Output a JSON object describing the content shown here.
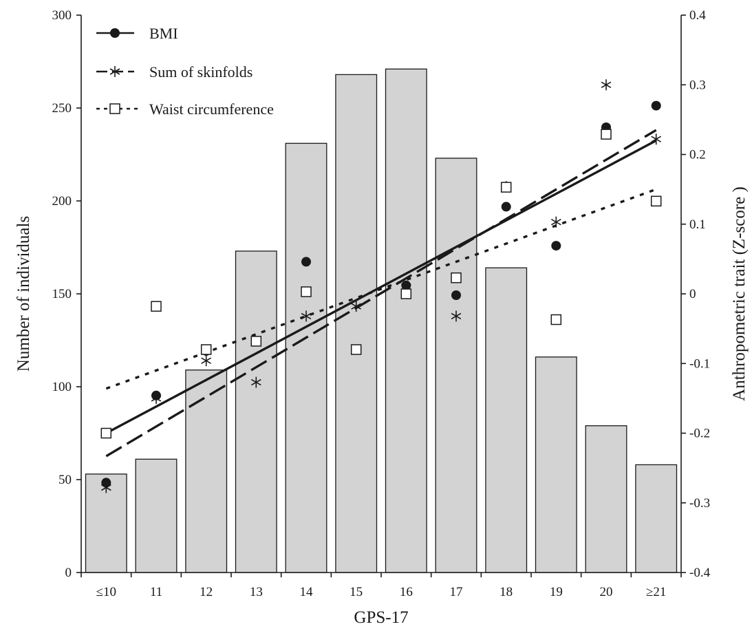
{
  "chart_data": {
    "type": "bar",
    "xlabel": "GPS-17",
    "ylabel_left": "Number of individuals",
    "ylabel_right": "Anthropometric trait (Z-score )",
    "categories": [
      "≤10",
      "11",
      "12",
      "13",
      "14",
      "15",
      "16",
      "17",
      "18",
      "19",
      "20",
      "≥21"
    ],
    "bar_values": [
      53,
      61,
      109,
      173,
      231,
      268,
      271,
      223,
      164,
      116,
      79,
      58
    ],
    "bar_color": "#d3d3d3",
    "ylim_left": [
      0,
      300
    ],
    "yticks_left": [
      "0",
      "50",
      "100",
      "150",
      "200",
      "250",
      "300"
    ],
    "ylim_right": [
      -0.4,
      0.4
    ],
    "yticks_right": [
      "-0.4",
      "-0.3",
      "-0.2",
      "-0.1",
      "0",
      "0.1",
      "0.2",
      "0.3",
      "0.4"
    ],
    "grid": false,
    "legend_position": "top-left",
    "series": [
      {
        "name": "BMI",
        "marker": "filled-circle",
        "line_style": "solid",
        "values": [
          -0.271,
          -0.146,
          -0.082,
          -0.068,
          0.046,
          -0.08,
          0.012,
          -0.002,
          0.125,
          0.069,
          0.239,
          0.27
        ],
        "trend": [
          -0.2,
          0.22
        ]
      },
      {
        "name": "Sum of skinfolds",
        "marker": "asterisk",
        "line_style": "long-dash",
        "values": [
          -0.278,
          -0.15,
          -0.096,
          -0.127,
          -0.032,
          -0.018,
          0.01,
          -0.032,
          0.154,
          0.103,
          0.3,
          0.222
        ],
        "trend": [
          -0.233,
          0.235
        ]
      },
      {
        "name": "Waist circumference",
        "marker": "open-square",
        "line_style": "dotted",
        "values": [
          -0.2,
          -0.018,
          -0.08,
          -0.068,
          0.003,
          -0.08,
          -0.0,
          0.023,
          0.153,
          -0.037,
          0.229,
          0.133
        ],
        "trend": [
          -0.136,
          0.15
        ]
      }
    ]
  }
}
